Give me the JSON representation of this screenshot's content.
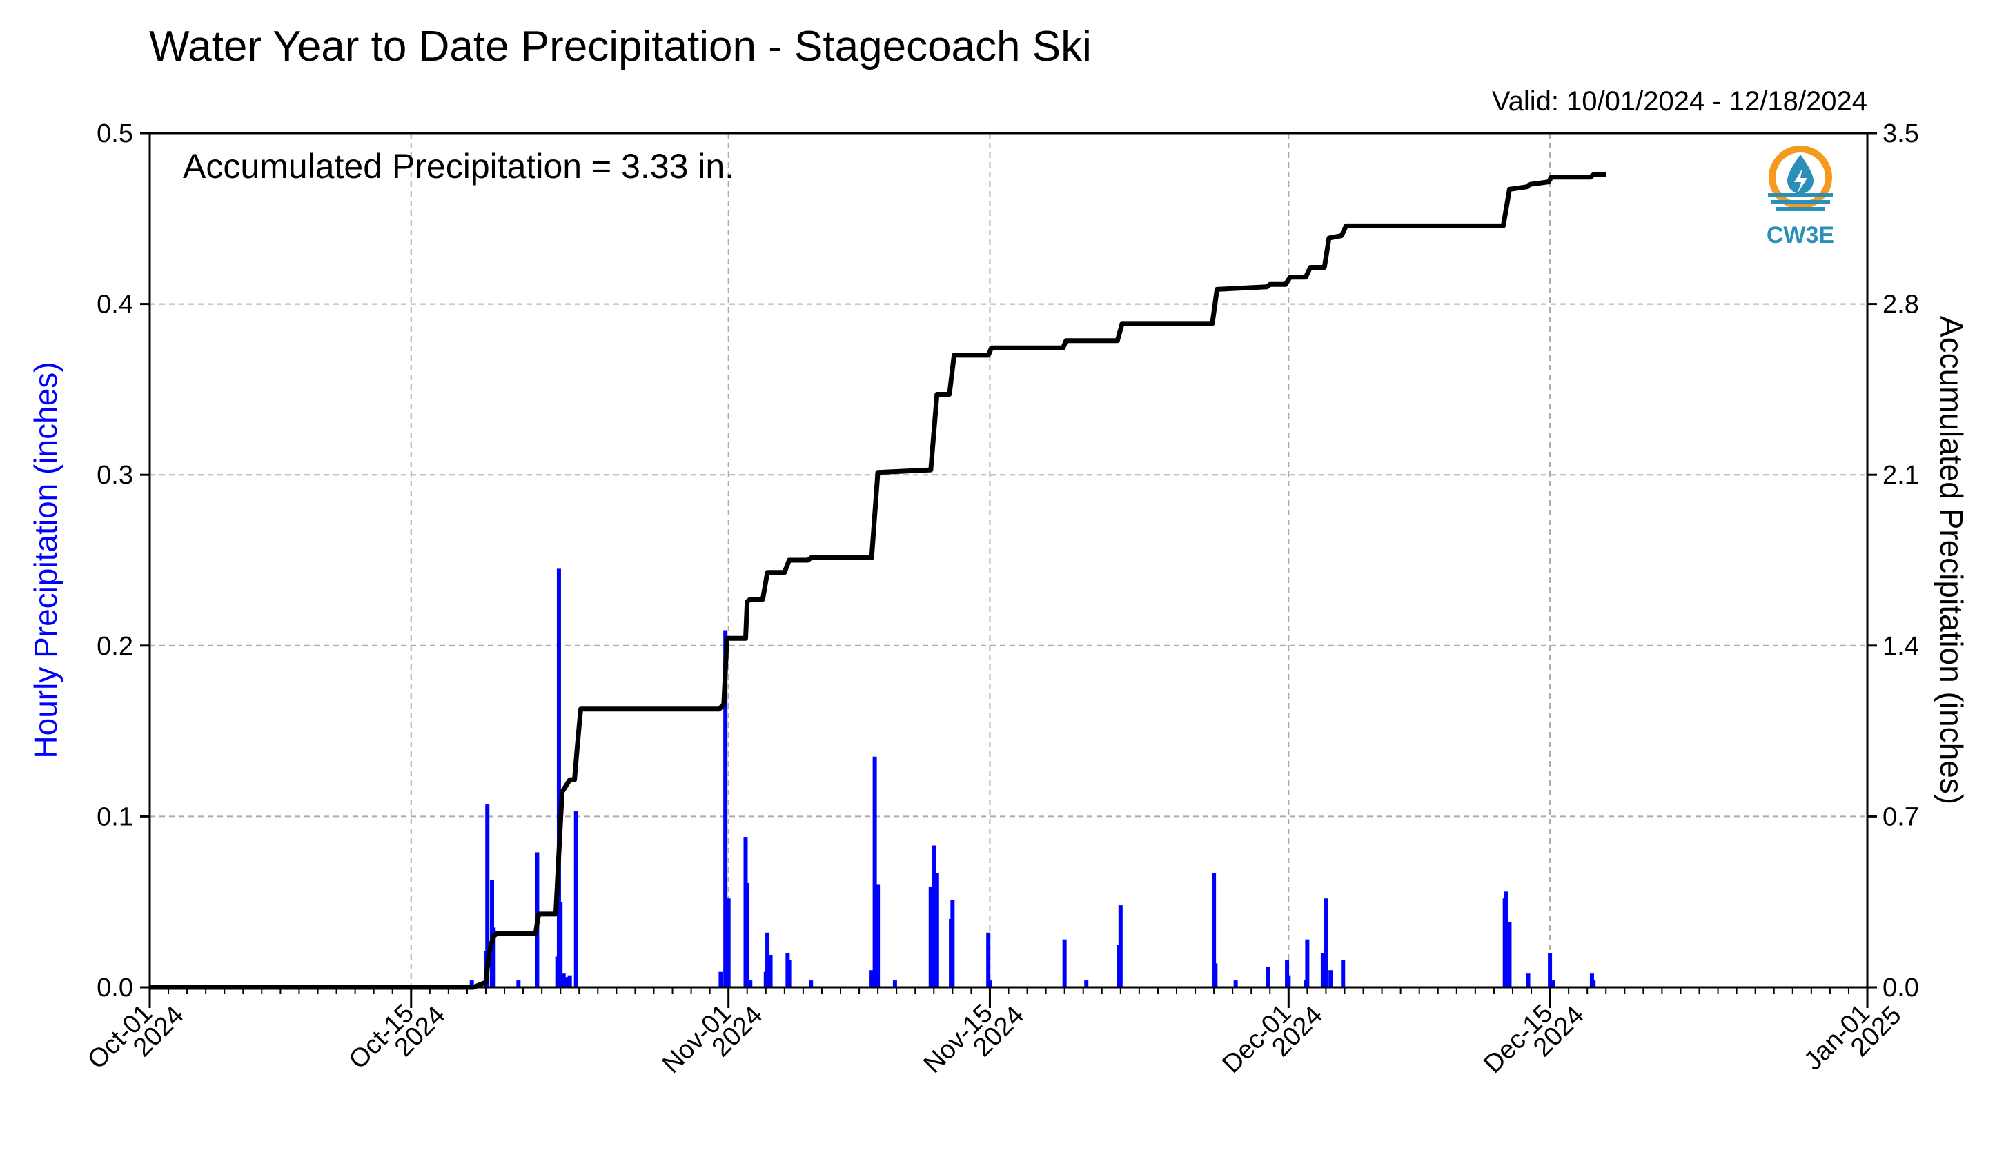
{
  "title": "Water Year to Date Precipitation - Stagecoach Ski",
  "valid_text": "Valid: 10/01/2024 - 12/18/2024",
  "annotation": "Accumulated Precipitation = 3.33 in.",
  "logo_text": "CW3E",
  "colors": {
    "hourly": "#0000ff",
    "accumulated": "#000000",
    "logo_orange": "#f39a1f",
    "logo_blue": "#2a8fb9"
  },
  "chart_data": {
    "type": "bar",
    "title": "Water Year to Date Precipitation - Stagecoach Ski",
    "xlim": [
      "2024-10-01",
      "2025-01-01"
    ],
    "x_ticks": [
      {
        "date": "2024-10-01",
        "line1": "Oct-01",
        "line2": "2024"
      },
      {
        "date": "2024-10-15",
        "line1": "Oct-15",
        "line2": "2024"
      },
      {
        "date": "2024-11-01",
        "line1": "Nov-01",
        "line2": "2024"
      },
      {
        "date": "2024-11-15",
        "line1": "Nov-15",
        "line2": "2024"
      },
      {
        "date": "2024-12-01",
        "line1": "Dec-01",
        "line2": "2024"
      },
      {
        "date": "2024-12-15",
        "line1": "Dec-15",
        "line2": "2024"
      },
      {
        "date": "2025-01-01",
        "line1": "Jan-01",
        "line2": "2025"
      }
    ],
    "left_axis": {
      "label": "Hourly Precipitation (inches)",
      "ylim": [
        0,
        0.5
      ],
      "ticks": [
        "0.0",
        "0.1",
        "0.2",
        "0.3",
        "0.4",
        "0.5"
      ]
    },
    "right_axis": {
      "label": "Accumulated Precipitation (inches)",
      "ylim": [
        0,
        3.5
      ],
      "ticks": [
        "0.0",
        "0.7",
        "1.4",
        "2.1",
        "2.8",
        "3.5"
      ]
    },
    "grid": true,
    "series": [
      {
        "axis": "left",
        "type": "bar",
        "points": [
          [
            "2024-10-18 06:00",
            0.004
          ],
          [
            "2024-10-19 00:00",
            0.021
          ],
          [
            "2024-10-19 02:00",
            0.107
          ],
          [
            "2024-10-19 08:00",
            0.063
          ],
          [
            "2024-10-19 10:00",
            0.035
          ],
          [
            "2024-10-20 18:00",
            0.004
          ],
          [
            "2024-10-21 18:00",
            0.079
          ],
          [
            "2024-10-22 20:00",
            0.018
          ],
          [
            "2024-10-22 22:00",
            0.245
          ],
          [
            "2024-10-23 00:00",
            0.05
          ],
          [
            "2024-10-23 04:00",
            0.008
          ],
          [
            "2024-10-23 08:00",
            0.006
          ],
          [
            "2024-10-23 12:00",
            0.007
          ],
          [
            "2024-10-23 20:00",
            0.103
          ],
          [
            "2024-10-31 14:00",
            0.009
          ],
          [
            "2024-10-31 20:00",
            0.209
          ],
          [
            "2024-11-01 00:00",
            0.052
          ],
          [
            "2024-11-01 22:00",
            0.088
          ],
          [
            "2024-11-02 00:00",
            0.061
          ],
          [
            "2024-11-02 04:00",
            0.004
          ],
          [
            "2024-11-03 00:00",
            0.009
          ],
          [
            "2024-11-03 02:00",
            0.032
          ],
          [
            "2024-11-03 06:00",
            0.019
          ],
          [
            "2024-11-04 04:00",
            0.02
          ],
          [
            "2024-11-04 06:00",
            0.016
          ],
          [
            "2024-11-05 10:00",
            0.004
          ],
          [
            "2024-11-08 16:00",
            0.01
          ],
          [
            "2024-11-08 20:00",
            0.135
          ],
          [
            "2024-11-09 00:00",
            0.06
          ],
          [
            "2024-11-09 22:00",
            0.004
          ],
          [
            "2024-11-11 20:00",
            0.059
          ],
          [
            "2024-11-12 00:00",
            0.083
          ],
          [
            "2024-11-12 04:00",
            0.067
          ],
          [
            "2024-11-12 22:00",
            0.04
          ],
          [
            "2024-11-13 00:00",
            0.051
          ],
          [
            "2024-11-14 22:00",
            0.032
          ],
          [
            "2024-11-15 00:00",
            0.004
          ],
          [
            "2024-11-19 00:00",
            0.028
          ],
          [
            "2024-11-20 04:00",
            0.004
          ],
          [
            "2024-11-21 22:00",
            0.025
          ],
          [
            "2024-11-22 00:00",
            0.048
          ],
          [
            "2024-11-27 00:00",
            0.067
          ],
          [
            "2024-11-27 02:00",
            0.014
          ],
          [
            "2024-11-28 04:00",
            0.004
          ],
          [
            "2024-11-29 22:00",
            0.012
          ],
          [
            "2024-11-30 22:00",
            0.016
          ],
          [
            "2024-12-01 00:00",
            0.007
          ],
          [
            "2024-12-01 22:00",
            0.004
          ],
          [
            "2024-12-02 00:00",
            0.028
          ],
          [
            "2024-12-02 20:00",
            0.02
          ],
          [
            "2024-12-03 00:00",
            0.052
          ],
          [
            "2024-12-03 06:00",
            0.01
          ],
          [
            "2024-12-03 22:00",
            0.016
          ],
          [
            "2024-12-12 14:00",
            0.052
          ],
          [
            "2024-12-12 16:00",
            0.056
          ],
          [
            "2024-12-12 20:00",
            0.038
          ],
          [
            "2024-12-13 20:00",
            0.008
          ],
          [
            "2024-12-15 00:00",
            0.02
          ],
          [
            "2024-12-15 04:00",
            0.004
          ],
          [
            "2024-12-17 06:00",
            0.008
          ],
          [
            "2024-12-17 08:00",
            0.004
          ]
        ]
      },
      {
        "axis": "right",
        "type": "line",
        "points": [
          [
            "2024-10-01 00:00",
            0.0
          ],
          [
            "2024-10-18 08:00",
            0.0
          ],
          [
            "2024-10-19 00:00",
            0.02
          ],
          [
            "2024-10-19 04:00",
            0.14
          ],
          [
            "2024-10-19 10:00",
            0.21
          ],
          [
            "2024-10-19 14:00",
            0.22
          ],
          [
            "2024-10-21 16:00",
            0.22
          ],
          [
            "2024-10-21 20:00",
            0.3
          ],
          [
            "2024-10-22 18:00",
            0.3
          ],
          [
            "2024-10-22 22:00",
            0.55
          ],
          [
            "2024-10-23 02:00",
            0.8
          ],
          [
            "2024-10-23 12:00",
            0.85
          ],
          [
            "2024-10-23 18:00",
            0.85
          ],
          [
            "2024-10-23 22:00",
            1.0
          ],
          [
            "2024-10-24 02:00",
            1.14
          ],
          [
            "2024-10-31 12:00",
            1.14
          ],
          [
            "2024-10-31 18:00",
            1.16
          ],
          [
            "2024-10-31 22:00",
            1.43
          ],
          [
            "2024-11-01 22:00",
            1.43
          ],
          [
            "2024-11-02 00:00",
            1.58
          ],
          [
            "2024-11-02 04:00",
            1.59
          ],
          [
            "2024-11-02 20:00",
            1.59
          ],
          [
            "2024-11-03 02:00",
            1.7
          ],
          [
            "2024-11-04 00:00",
            1.7
          ],
          [
            "2024-11-04 06:00",
            1.75
          ],
          [
            "2024-11-05 06:00",
            1.75
          ],
          [
            "2024-11-05 10:00",
            1.76
          ],
          [
            "2024-11-08 16:00",
            1.76
          ],
          [
            "2024-11-09 00:00",
            2.11
          ],
          [
            "2024-11-11 20:00",
            2.12
          ],
          [
            "2024-11-12 04:00",
            2.43
          ],
          [
            "2024-11-12 20:00",
            2.43
          ],
          [
            "2024-11-13 02:00",
            2.59
          ],
          [
            "2024-11-14 22:00",
            2.59
          ],
          [
            "2024-11-15 02:00",
            2.62
          ],
          [
            "2024-11-18 22:00",
            2.62
          ],
          [
            "2024-11-19 02:00",
            2.65
          ],
          [
            "2024-11-21 20:00",
            2.65
          ],
          [
            "2024-11-22 02:00",
            2.72
          ],
          [
            "2024-11-26 22:00",
            2.72
          ],
          [
            "2024-11-27 04:00",
            2.86
          ],
          [
            "2024-11-29 20:00",
            2.87
          ],
          [
            "2024-11-30 00:00",
            2.88
          ],
          [
            "2024-11-30 20:00",
            2.88
          ],
          [
            "2024-12-01 02:00",
            2.91
          ],
          [
            "2024-12-01 22:00",
            2.91
          ],
          [
            "2024-12-02 04:00",
            2.95
          ],
          [
            "2024-12-02 22:00",
            2.95
          ],
          [
            "2024-12-03 04:00",
            3.07
          ],
          [
            "2024-12-03 20:00",
            3.08
          ],
          [
            "2024-12-04 02:00",
            3.12
          ],
          [
            "2024-12-12 12:00",
            3.12
          ],
          [
            "2024-12-12 20:00",
            3.27
          ],
          [
            "2024-12-13 18:00",
            3.28
          ],
          [
            "2024-12-13 22:00",
            3.29
          ],
          [
            "2024-12-14 22:00",
            3.3
          ],
          [
            "2024-12-15 02:00",
            3.32
          ],
          [
            "2024-12-17 04:00",
            3.32
          ],
          [
            "2024-12-17 08:00",
            3.33
          ],
          [
            "2024-12-18 00:00",
            3.33
          ]
        ]
      }
    ]
  }
}
